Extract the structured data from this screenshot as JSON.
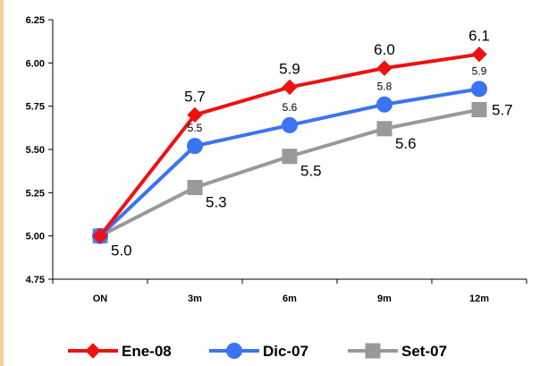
{
  "chart_data": {
    "type": "line",
    "categories": [
      "ON",
      "3m",
      "6m",
      "9m",
      "12m"
    ],
    "ylim": [
      4.75,
      6.25
    ],
    "yticks": [
      "4.75",
      "5.00",
      "5.25",
      "5.50",
      "5.75",
      "6.00",
      "6.25"
    ],
    "grid": false,
    "legend_position": "bottom",
    "series": [
      {
        "name": "Ene-08",
        "color": "#ee1111",
        "marker": "diamond",
        "values": [
          5.0,
          5.7,
          5.86,
          5.97,
          6.05
        ],
        "labels": [
          "",
          "5.7",
          "5.9",
          "6.0",
          "6.1"
        ],
        "label_size": "big"
      },
      {
        "name": "Dic-07",
        "color": "#3b74f0",
        "marker": "circle",
        "values": [
          5.0,
          5.52,
          5.64,
          5.76,
          5.85
        ],
        "labels": [
          "",
          "5.5",
          "5.6",
          "5.8",
          "5.9"
        ],
        "label_size": "small"
      },
      {
        "name": "Set-07",
        "color": "#999999",
        "marker": "square",
        "values": [
          5.0,
          5.28,
          5.46,
          5.62,
          5.73
        ],
        "labels": [
          "5.0",
          "5.3",
          "5.5",
          "5.6",
          "5.7"
        ],
        "label_size": "big"
      }
    ]
  }
}
